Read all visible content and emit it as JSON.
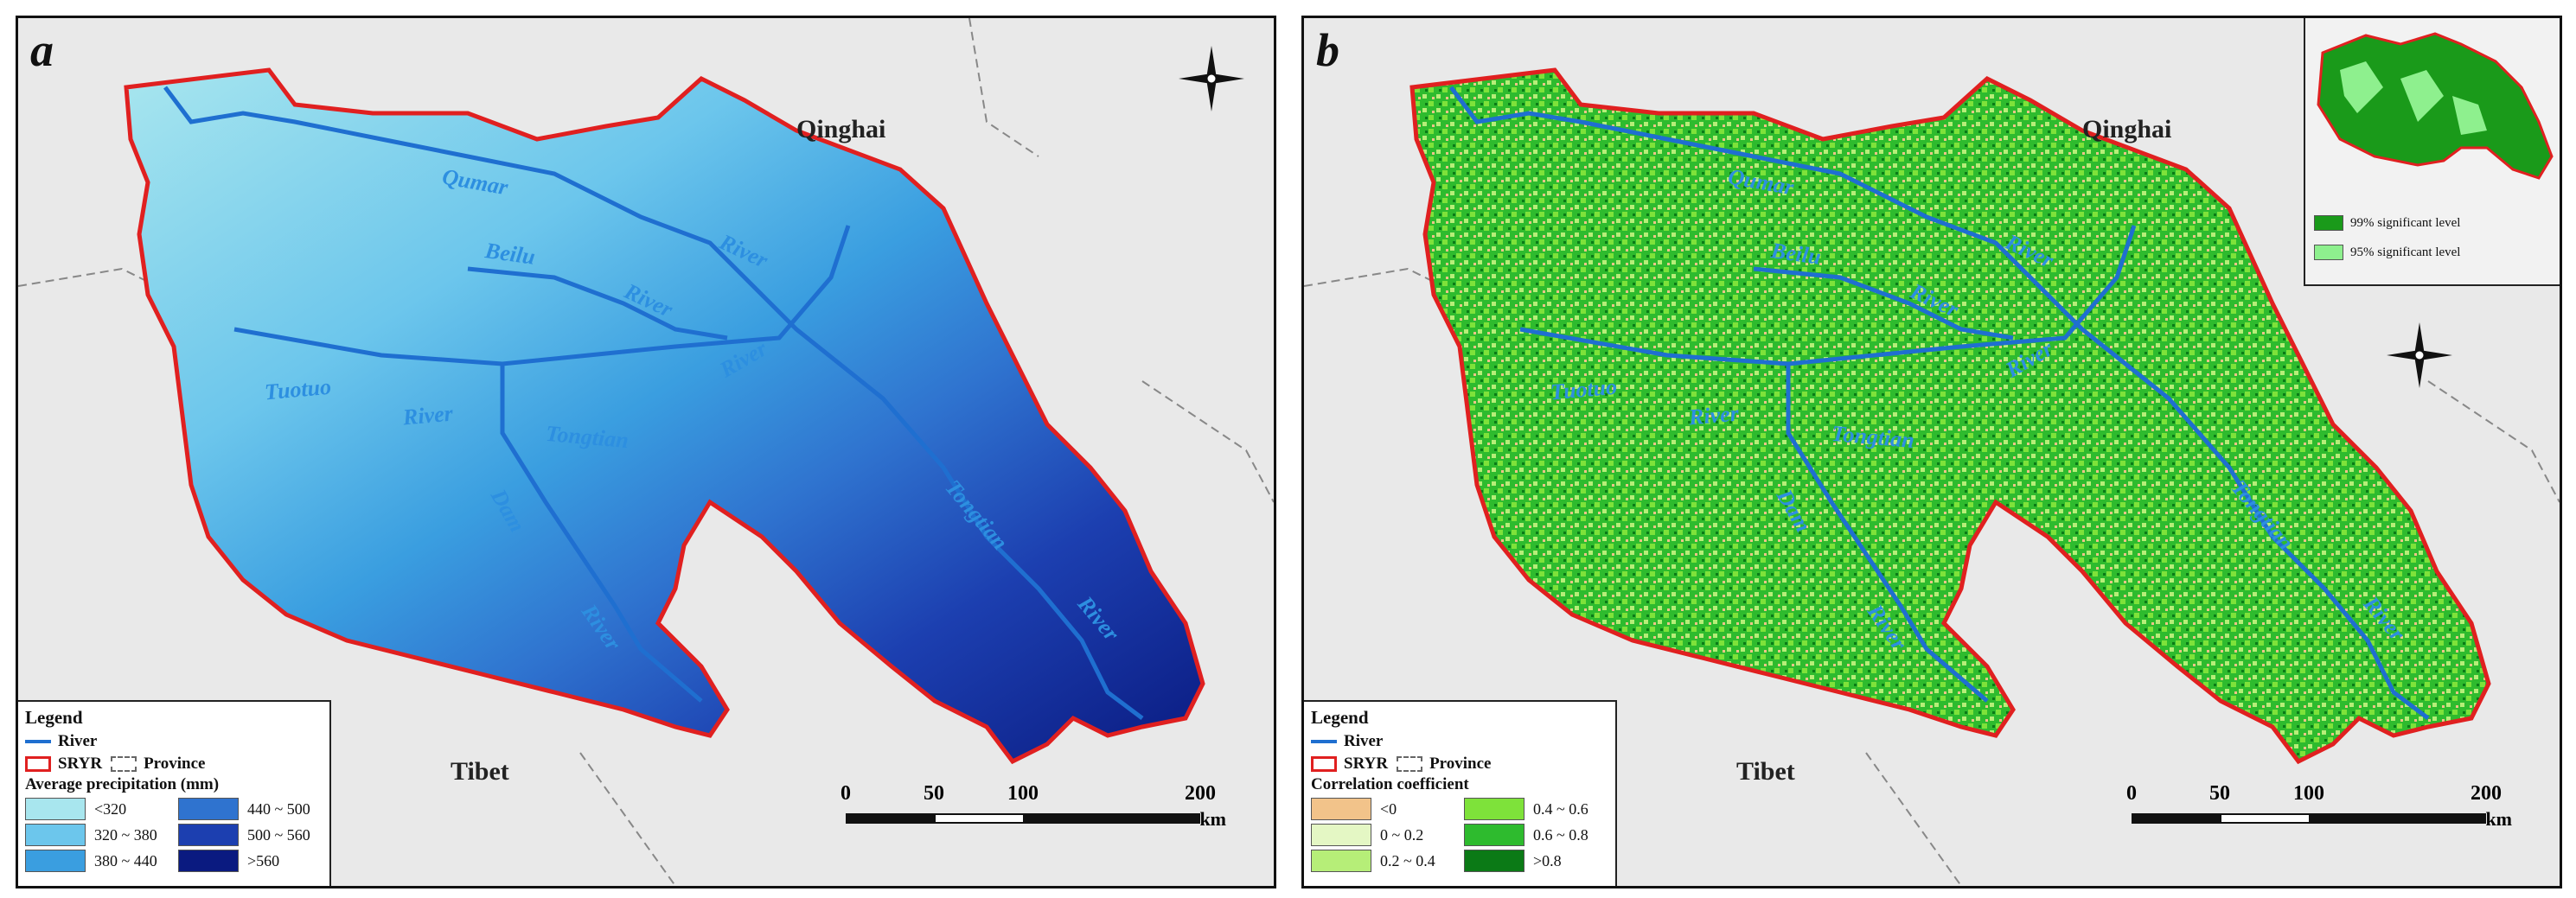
{
  "panels": [
    {
      "label": "a",
      "regions": {
        "north": "Qinghai",
        "south": "Tibet"
      },
      "river_labels": [
        "Qumar",
        "River",
        "Beilu",
        "River",
        "River",
        "Tuotuo",
        "River",
        "Tongtian",
        "Dam",
        "River",
        "Tongtian",
        "River"
      ],
      "legend": {
        "title": "Legend",
        "river": "River",
        "srvyr": "SRYR",
        "province": "Province",
        "variable": "Average precipitation (mm)",
        "classes": [
          {
            "label": "<320",
            "color": "#a8e6ee"
          },
          {
            "label": "440 ~ 500",
            "color": "#2f73cf"
          },
          {
            "label": "320 ~ 380",
            "color": "#6cc6ec"
          },
          {
            "label": "500 ~ 560",
            "color": "#1c3fb0"
          },
          {
            "label": "380 ~ 440",
            "color": "#3a9ee0"
          },
          {
            "label": ">560",
            "color": "#0a1a80"
          }
        ]
      },
      "scale": {
        "ticks": [
          "0",
          "50",
          "100",
          "200"
        ],
        "unit": "km"
      }
    },
    {
      "label": "b",
      "regions": {
        "north": "Qinghai",
        "south": "Tibet"
      },
      "river_labels": [
        "Qumar",
        "River",
        "Beilu",
        "River",
        "River",
        "Tuotuo",
        "River",
        "Tongtian",
        "Dam",
        "River",
        "Tongtian",
        "River"
      ],
      "legend": {
        "title": "Legend",
        "river": "River",
        "srvyr": "SRYR",
        "province": "Province",
        "variable": "Correlation coefficient",
        "classes": [
          {
            "label": "<0",
            "color": "#f2c38a"
          },
          {
            "label": "0.4 ~ 0.6",
            "color": "#7ee23a"
          },
          {
            "label": "0 ~ 0.2",
            "color": "#e4f7c4"
          },
          {
            "label": "0.6 ~ 0.8",
            "color": "#2ebb2e"
          },
          {
            "label": "0.2 ~ 0.4",
            "color": "#b6ee78"
          },
          {
            "label": ">0.8",
            "color": "#0b7a16"
          }
        ]
      },
      "scale": {
        "ticks": [
          "0",
          "50",
          "100",
          "200"
        ],
        "unit": "km"
      },
      "inset": {
        "items": [
          {
            "label": "99% significant level",
            "color": "#1a9a1a"
          },
          {
            "label": "95% significant level",
            "color": "#8ef08e"
          }
        ]
      }
    }
  ],
  "colors": {
    "boundary": "#e02020",
    "river": "#1f6fd0"
  }
}
